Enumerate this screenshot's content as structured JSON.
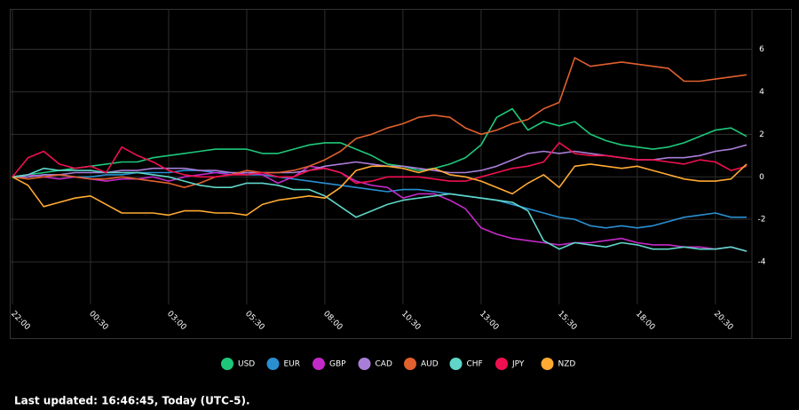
{
  "chart_data": {
    "type": "line",
    "categories": [
      "22:00",
      null,
      null,
      null,
      null,
      "00:30",
      null,
      null,
      null,
      null,
      "03:00",
      null,
      null,
      null,
      null,
      "05:30",
      null,
      null,
      null,
      null,
      "08:00",
      null,
      null,
      null,
      null,
      "10:30",
      null,
      null,
      null,
      null,
      "13:00",
      null,
      null,
      null,
      null,
      "15:30",
      null,
      null,
      null,
      null,
      "18:00",
      null,
      null,
      null,
      null,
      "20:30",
      null,
      null
    ],
    "series": [
      {
        "name": "USD",
        "color": "#1ec87a",
        "values": [
          0,
          0.1,
          0.2,
          0.3,
          0.4,
          0.5,
          0.6,
          0.7,
          0.7,
          0.9,
          1.0,
          1.1,
          1.2,
          1.3,
          1.3,
          1.3,
          1.1,
          1.1,
          1.3,
          1.5,
          1.6,
          1.6,
          1.3,
          1.0,
          0.6,
          0.5,
          0.3,
          0.4,
          0.6,
          0.9,
          1.5,
          2.8,
          3.2,
          2.2,
          2.6,
          2.4,
          2.6,
          2.0,
          1.7,
          1.5,
          1.4,
          1.3,
          1.4,
          1.6,
          1.9,
          2.2,
          2.3,
          1.9
        ]
      },
      {
        "name": "EUR",
        "color": "#2a8fd1",
        "values": [
          0,
          0,
          0.1,
          0.1,
          0,
          0,
          0.1,
          0.1,
          0.2,
          0.2,
          0.2,
          0.3,
          0.3,
          0.2,
          0.2,
          0.1,
          0.1,
          0.0,
          -0.1,
          -0.2,
          -0.3,
          -0.4,
          -0.5,
          -0.6,
          -0.7,
          -0.6,
          -0.6,
          -0.7,
          -0.8,
          -0.9,
          -1.0,
          -1.1,
          -1.3,
          -1.5,
          -1.7,
          -1.9,
          -2.0,
          -2.3,
          -2.4,
          -2.3,
          -2.4,
          -2.3,
          -2.1,
          -1.9,
          -1.8,
          -1.7,
          -1.9,
          -1.9
        ]
      },
      {
        "name": "GBP",
        "color": "#c42ac7",
        "values": [
          0,
          0.1,
          0,
          -0.1,
          0,
          -0.1,
          -0.2,
          -0.1,
          -0.1,
          0,
          -0.2,
          0,
          0.1,
          0.2,
          0.1,
          0.2,
          0.1,
          -0.3,
          0,
          0.5,
          0.4,
          0.2,
          -0.2,
          -0.4,
          -0.5,
          -1.0,
          -0.8,
          -0.8,
          -1.1,
          -1.5,
          -2.4,
          -2.7,
          -2.9,
          -3.0,
          -3.1,
          -3.2,
          -3.1,
          -3.1,
          -3.0,
          -2.9,
          -3.1,
          -3.2,
          -3.2,
          -3.3,
          -3.3,
          -3.4,
          -3.3,
          -3.5
        ]
      },
      {
        "name": "CAD",
        "color": "#a97ed8",
        "values": [
          0,
          0,
          0.1,
          0.1,
          0.2,
          0.2,
          0.2,
          0.3,
          0.3,
          0.4,
          0.4,
          0.4,
          0.3,
          0.3,
          0.2,
          0.2,
          0.2,
          0.2,
          0.2,
          0.3,
          0.5,
          0.6,
          0.7,
          0.6,
          0.5,
          0.5,
          0.4,
          0.3,
          0.2,
          0.2,
          0.3,
          0.5,
          0.8,
          1.1,
          1.2,
          1.1,
          1.2,
          1.1,
          1.0,
          0.9,
          0.8,
          0.8,
          0.9,
          0.9,
          1.0,
          1.2,
          1.3,
          1.5
        ]
      },
      {
        "name": "AUD",
        "color": "#e0602e",
        "values": [
          0,
          -0.1,
          0,
          0.1,
          0,
          -0.1,
          -0.1,
          0,
          -0.1,
          -0.2,
          -0.3,
          -0.5,
          -0.3,
          0,
          0.1,
          0.3,
          0.2,
          0.2,
          0.3,
          0.5,
          0.8,
          1.2,
          1.8,
          2.0,
          2.3,
          2.5,
          2.8,
          2.9,
          2.8,
          2.3,
          2.0,
          2.2,
          2.5,
          2.7,
          3.2,
          3.5,
          5.6,
          5.2,
          5.3,
          5.4,
          5.3,
          5.2,
          5.1,
          4.5,
          4.5,
          4.6,
          4.7,
          4.8
        ]
      },
      {
        "name": "CHF",
        "color": "#5fd6c8",
        "values": [
          0,
          0.1,
          0.4,
          0.3,
          0.3,
          0.3,
          0.2,
          0.2,
          0.2,
          0.1,
          0,
          -0.2,
          -0.4,
          -0.5,
          -0.5,
          -0.3,
          -0.3,
          -0.4,
          -0.6,
          -0.6,
          -0.9,
          -1.4,
          -1.9,
          -1.6,
          -1.3,
          -1.1,
          -1.0,
          -0.9,
          -0.8,
          -0.9,
          -1.0,
          -1.1,
          -1.2,
          -1.6,
          -3.0,
          -3.4,
          -3.1,
          -3.2,
          -3.3,
          -3.1,
          -3.2,
          -3.4,
          -3.4,
          -3.3,
          -3.4,
          -3.4,
          -3.3,
          -3.5
        ]
      },
      {
        "name": "JPY",
        "color": "#f0104f",
        "values": [
          0,
          0.9,
          1.2,
          0.6,
          0.4,
          0.5,
          0.2,
          1.4,
          1.0,
          0.7,
          0.3,
          0.1,
          0,
          0,
          0.1,
          0.1,
          0.2,
          0,
          0,
          0.3,
          0.4,
          0.2,
          -0.3,
          -0.2,
          0,
          0,
          0,
          -0.1,
          -0.2,
          -0.2,
          0,
          0.2,
          0.4,
          0.5,
          0.7,
          1.6,
          1.1,
          1.0,
          1.0,
          0.9,
          0.8,
          0.8,
          0.7,
          0.6,
          0.8,
          0.7,
          0.3,
          0.5
        ]
      },
      {
        "name": "NZD",
        "color": "#ffab33",
        "values": [
          0,
          -0.4,
          -1.4,
          -1.2,
          -1.0,
          -0.9,
          -1.3,
          -1.7,
          -1.7,
          -1.7,
          -1.8,
          -1.6,
          -1.6,
          -1.7,
          -1.7,
          -1.8,
          -1.3,
          -1.1,
          -1.0,
          -0.9,
          -1.0,
          -0.5,
          0.3,
          0.5,
          0.5,
          0.4,
          0.2,
          0.4,
          0.1,
          0,
          -0.2,
          -0.5,
          -0.8,
          -0.3,
          0.1,
          -0.5,
          0.5,
          0.6,
          0.5,
          0.4,
          0.5,
          0.3,
          0.1,
          -0.1,
          -0.2,
          -0.2,
          -0.1,
          0.6
        ]
      }
    ],
    "ylim": [
      -6,
      7.9
    ],
    "yticks": [
      -4,
      -2,
      0,
      2,
      4,
      6
    ],
    "grid": true,
    "footer": "Last updated: 16:46:45, Today (UTC-5)."
  }
}
